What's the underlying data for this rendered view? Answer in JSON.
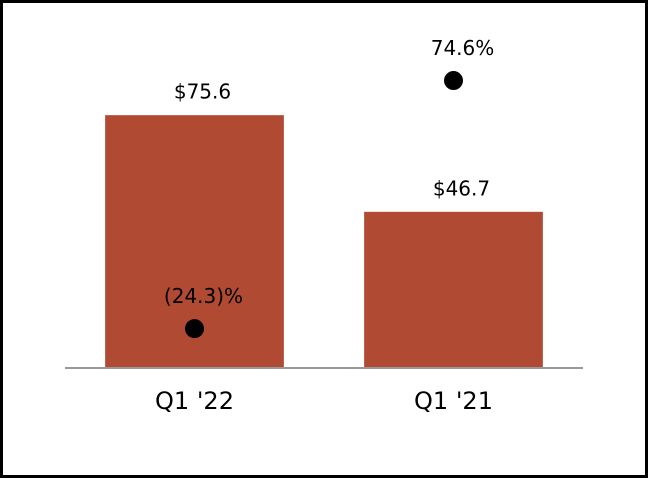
{
  "chart_data": {
    "type": "bar",
    "categories": [
      "Q1 '22",
      "Q1 '21"
    ],
    "series": [
      {
        "type": "bar",
        "color": "#b04a33",
        "values": [
          75.6,
          46.7
        ],
        "value_labels": [
          "$75.6",
          "$46.7"
        ]
      },
      {
        "type": "scatter",
        "axis": "y2",
        "color": "#000000",
        "values": [
          -24.3,
          74.6
        ],
        "value_labels": [
          "(24.3)%",
          "74.6%"
        ]
      }
    ],
    "ylim": [
      0,
      90
    ],
    "y2lim": [
      -40,
      80
    ]
  }
}
